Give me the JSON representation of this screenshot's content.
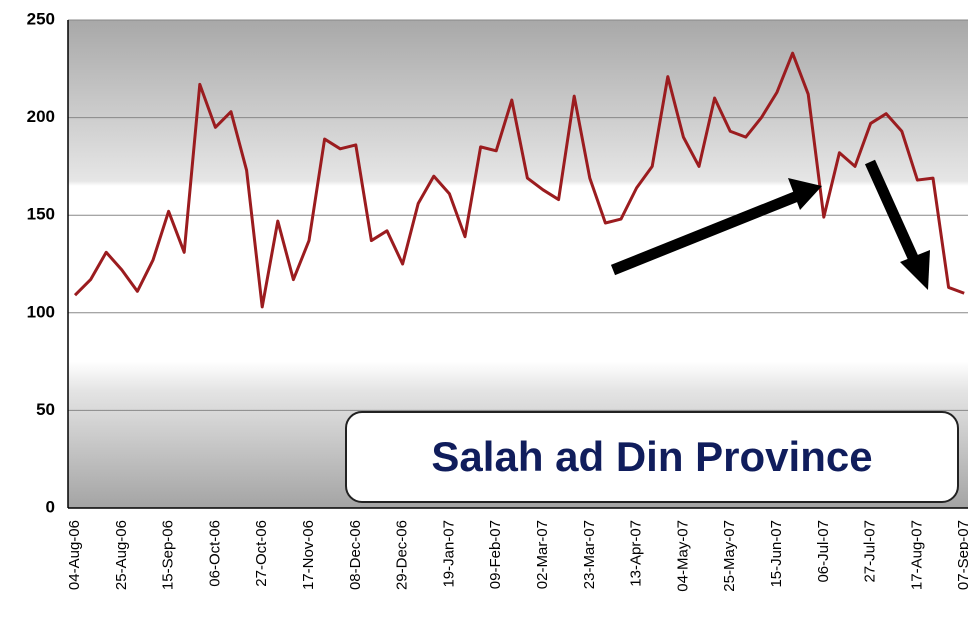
{
  "chart_data": {
    "type": "line",
    "annotation": "Salah ad Din Province",
    "categories": [
      "04-Aug-06",
      null,
      null,
      "25-Aug-06",
      null,
      null,
      "15-Sep-06",
      null,
      null,
      "06-Oct-06",
      null,
      null,
      "27-Oct-06",
      null,
      null,
      "17-Nov-06",
      null,
      null,
      "08-Dec-06",
      null,
      null,
      "29-Dec-06",
      null,
      null,
      "19-Jan-07",
      null,
      null,
      "09-Feb-07",
      null,
      null,
      "02-Mar-07",
      null,
      null,
      "23-Mar-07",
      null,
      null,
      "13-Apr-07",
      null,
      null,
      "04-May-07",
      null,
      null,
      "25-May-07",
      null,
      null,
      "15-Jun-07",
      null,
      null,
      "06-Jul-07",
      null,
      null,
      "27-Jul-07",
      null,
      null,
      "17-Aug-07",
      null,
      null,
      "07-Sep-07"
    ],
    "values": [
      109,
      117,
      131,
      122,
      111,
      127,
      152,
      131,
      217,
      195,
      203,
      173,
      103,
      147,
      117,
      137,
      189,
      184,
      186,
      137,
      142,
      125,
      156,
      170,
      161,
      139,
      185,
      183,
      209,
      169,
      163,
      158,
      211,
      169,
      146,
      148,
      164,
      175,
      221,
      190,
      175,
      210,
      193,
      190,
      200,
      213,
      233,
      212,
      149,
      182,
      175,
      197,
      202,
      193,
      168,
      169,
      113,
      110
    ],
    "color": "#9b1c1f",
    "ylim": [
      0,
      250
    ],
    "yticks": [
      0,
      50,
      100,
      150,
      200,
      250
    ],
    "grid": true
  }
}
